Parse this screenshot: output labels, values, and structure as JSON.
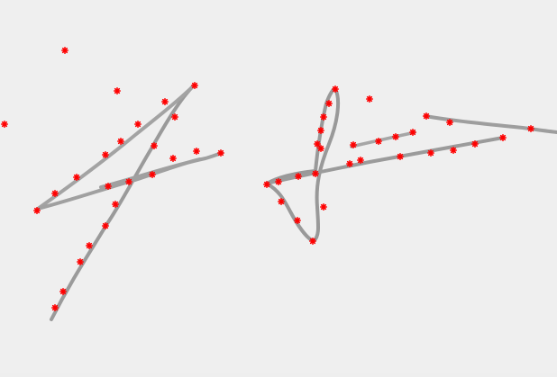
{
  "scene": {
    "description_free": true,
    "background_color": "#efefef",
    "ink_color": "#9a9a9a",
    "marker_color": "#ff0000",
    "marker_icon": "asterisk-icon"
  },
  "signature": {
    "strokes": [
      {
        "name": "left-long-descender"
      },
      {
        "name": "left-crossbar"
      },
      {
        "name": "left-horizontal-tail"
      },
      {
        "name": "right-loop"
      },
      {
        "name": "right-crossbar"
      },
      {
        "name": "right-short-dash"
      },
      {
        "name": "right-long-tail"
      }
    ]
  },
  "markers": {
    "count_visible": 54
  }
}
